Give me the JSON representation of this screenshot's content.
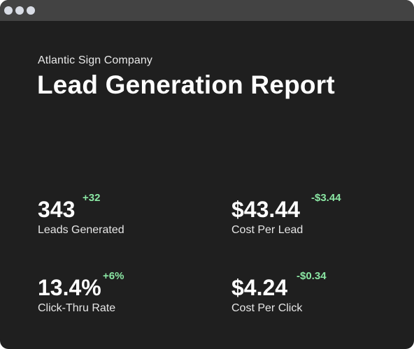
{
  "window": {
    "controls": [
      "dot",
      "dot",
      "dot"
    ]
  },
  "report": {
    "company": "Atlantic Sign Company",
    "title": "Lead Generation Report"
  },
  "metrics": [
    {
      "value": "343",
      "delta": "+32",
      "label": "Leads Generated"
    },
    {
      "value": "$43.44",
      "delta": "-$3.44",
      "label": "Cost Per Lead"
    },
    {
      "value": "13.4%",
      "delta": "+6%",
      "label": "Click-Thru Rate"
    },
    {
      "value": "$4.24",
      "delta": "-$0.34",
      "label": "Cost Per Click"
    }
  ],
  "colors": {
    "background": "#1f1f1f",
    "titlebar": "#434343",
    "window_dot": "#d9dde6",
    "delta": "#8ae6a3",
    "text": "#ffffff"
  }
}
